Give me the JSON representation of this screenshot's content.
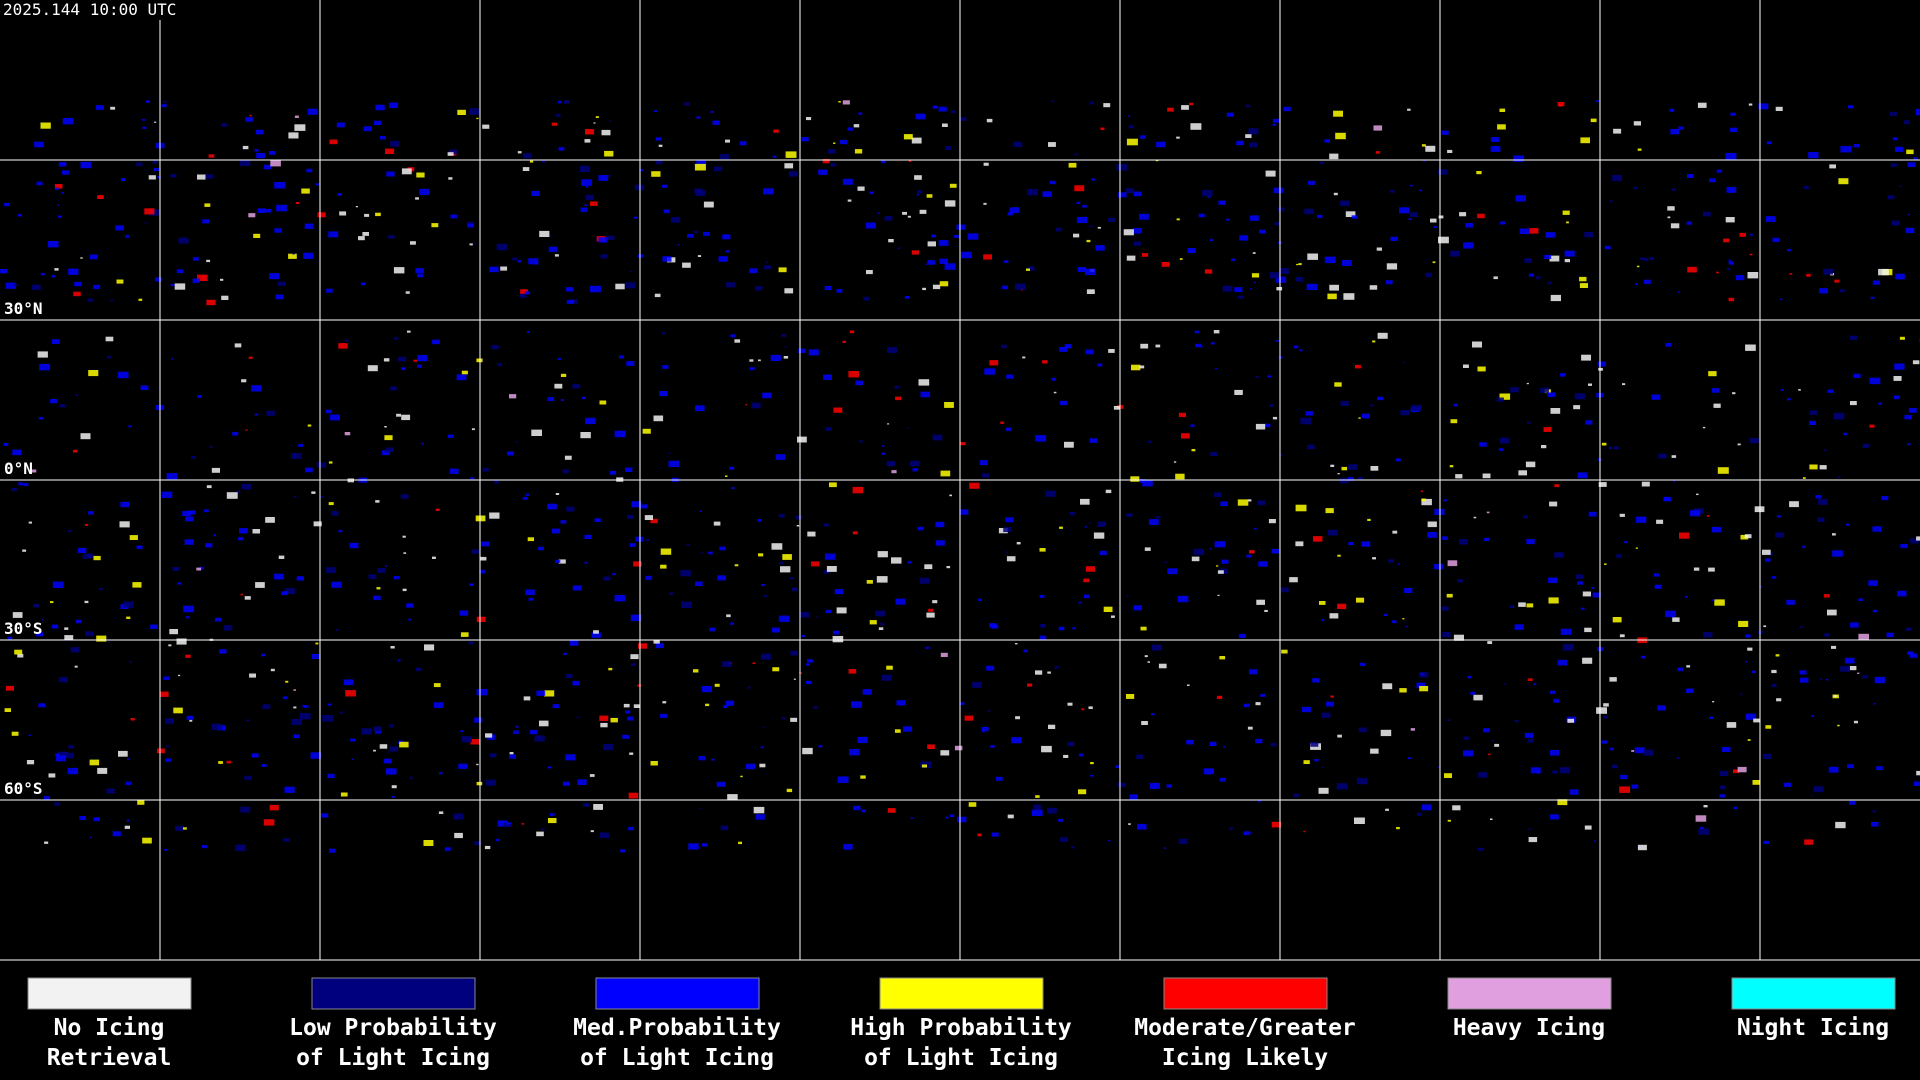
{
  "header": {
    "timestamp": "2025.144 10:00 UTC"
  },
  "map": {
    "latitude_labels": [
      "30°N",
      "0°N",
      "30°S",
      "60°S"
    ]
  },
  "legend": {
    "items": [
      {
        "color": "#f2f2f2",
        "label_lines": [
          "No Icing",
          "Retrieval"
        ]
      },
      {
        "color": "#00007f",
        "label_lines": [
          "Low Probability",
          "of Light Icing"
        ]
      },
      {
        "color": "#0000ff",
        "label_lines": [
          "Med.Probability",
          "of Light Icing"
        ]
      },
      {
        "color": "#ffff00",
        "label_lines": [
          "High Probability",
          "of Light Icing"
        ]
      },
      {
        "color": "#ff0000",
        "label_lines": [
          "Moderate/Greater",
          "Icing Likely"
        ]
      },
      {
        "color": "#e0a0e0",
        "label_lines": [
          "Heavy Icing"
        ]
      },
      {
        "color": "#00ffff",
        "label_lines": [
          "Night Icing"
        ]
      }
    ]
  }
}
